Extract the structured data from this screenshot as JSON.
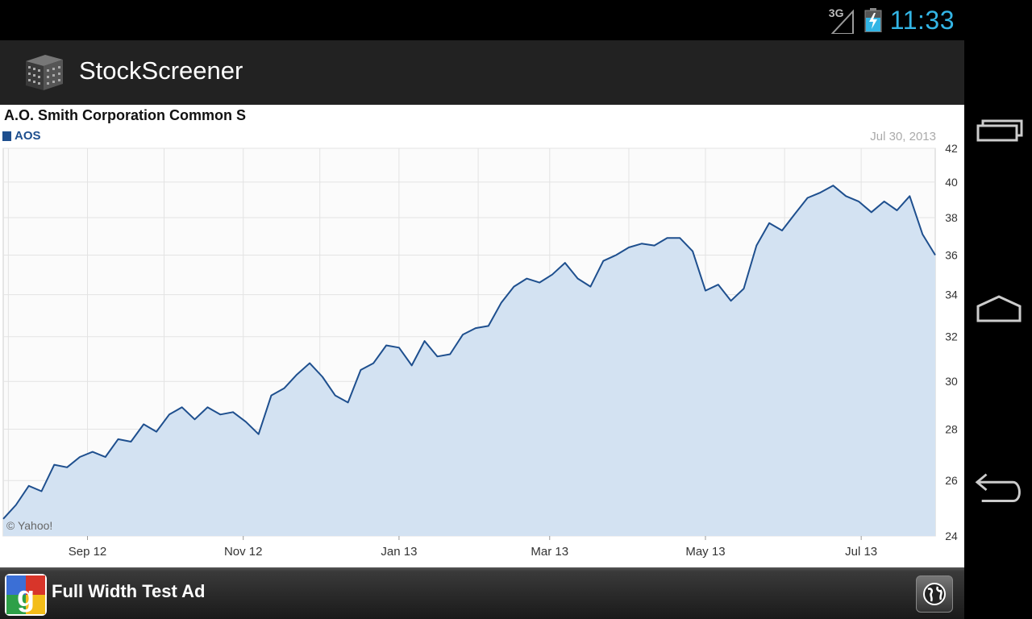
{
  "status_bar": {
    "network_label": "3G",
    "time": "11:33",
    "icons": [
      "signal-icon",
      "battery-charging-icon"
    ],
    "clock_color": "#33b5e5"
  },
  "action_bar": {
    "title": "StockScreener",
    "icon": "app-building-icon"
  },
  "chart": {
    "title": "A.O. Smith Corporation Common S",
    "legend_label": "AOS",
    "date_label": "Jul 30, 2013",
    "watermark": "© Yahoo!",
    "line_color": "#1e4f8e",
    "fill_color": "#d3e2f2"
  },
  "chart_data": {
    "type": "area",
    "title": "A.O. Smith Corporation Common S",
    "series": [
      {
        "name": "AOS",
        "points": [
          [
            "2012-07-30",
            24.6
          ],
          [
            "2012-08-04",
            25.1
          ],
          [
            "2012-08-09",
            25.8
          ],
          [
            "2012-08-14",
            25.6
          ],
          [
            "2012-08-19",
            26.6
          ],
          [
            "2012-08-24",
            26.5
          ],
          [
            "2012-08-29",
            26.9
          ],
          [
            "2012-09-03",
            27.1
          ],
          [
            "2012-09-08",
            26.9
          ],
          [
            "2012-09-13",
            27.6
          ],
          [
            "2012-09-18",
            27.5
          ],
          [
            "2012-09-23",
            28.2
          ],
          [
            "2012-09-28",
            27.9
          ],
          [
            "2012-10-03",
            28.6
          ],
          [
            "2012-10-08",
            28.9
          ],
          [
            "2012-10-13",
            28.4
          ],
          [
            "2012-10-18",
            28.9
          ],
          [
            "2012-10-23",
            28.6
          ],
          [
            "2012-10-28",
            28.7
          ],
          [
            "2012-11-02",
            28.3
          ],
          [
            "2012-11-07",
            27.8
          ],
          [
            "2012-11-12",
            29.4
          ],
          [
            "2012-11-17",
            29.7
          ],
          [
            "2012-11-22",
            30.3
          ],
          [
            "2012-11-27",
            30.8
          ],
          [
            "2012-12-02",
            30.2
          ],
          [
            "2012-12-07",
            29.4
          ],
          [
            "2012-12-12",
            29.1
          ],
          [
            "2012-12-17",
            30.5
          ],
          [
            "2012-12-22",
            30.8
          ],
          [
            "2012-12-27",
            31.6
          ],
          [
            "2013-01-01",
            31.5
          ],
          [
            "2013-01-06",
            30.7
          ],
          [
            "2013-01-11",
            31.8
          ],
          [
            "2013-01-16",
            31.1
          ],
          [
            "2013-01-21",
            31.2
          ],
          [
            "2013-01-26",
            32.1
          ],
          [
            "2013-01-31",
            32.4
          ],
          [
            "2013-02-05",
            32.5
          ],
          [
            "2013-02-10",
            33.6
          ],
          [
            "2013-02-15",
            34.4
          ],
          [
            "2013-02-20",
            34.8
          ],
          [
            "2013-02-25",
            34.6
          ],
          [
            "2013-03-02",
            35.0
          ],
          [
            "2013-03-07",
            35.6
          ],
          [
            "2013-03-12",
            34.8
          ],
          [
            "2013-03-17",
            34.4
          ],
          [
            "2013-03-22",
            35.7
          ],
          [
            "2013-03-27",
            36.0
          ],
          [
            "2013-04-01",
            36.4
          ],
          [
            "2013-04-06",
            36.6
          ],
          [
            "2013-04-11",
            36.5
          ],
          [
            "2013-04-16",
            36.9
          ],
          [
            "2013-04-21",
            36.9
          ],
          [
            "2013-04-26",
            36.2
          ],
          [
            "2013-05-01",
            34.2
          ],
          [
            "2013-05-06",
            34.5
          ],
          [
            "2013-05-11",
            33.7
          ],
          [
            "2013-05-16",
            34.3
          ],
          [
            "2013-05-21",
            36.5
          ],
          [
            "2013-05-26",
            37.7
          ],
          [
            "2013-05-31",
            37.3
          ],
          [
            "2013-06-05",
            38.2
          ],
          [
            "2013-06-10",
            39.1
          ],
          [
            "2013-06-15",
            39.4
          ],
          [
            "2013-06-20",
            39.8
          ],
          [
            "2013-06-25",
            39.2
          ],
          [
            "2013-06-30",
            38.9
          ],
          [
            "2013-07-05",
            38.3
          ],
          [
            "2013-07-10",
            38.9
          ],
          [
            "2013-07-15",
            38.4
          ],
          [
            "2013-07-20",
            39.2
          ],
          [
            "2013-07-25",
            37.1
          ],
          [
            "2013-07-30",
            36.0
          ]
        ]
      }
    ],
    "x_ticks": [
      "Sep 12",
      "Nov 12",
      "Jan 13",
      "Mar 13",
      "May 13",
      "Jul 13"
    ],
    "y_ticks": [
      24,
      26,
      28,
      30,
      32,
      34,
      36,
      38,
      40,
      42
    ],
    "ylim": [
      24,
      42
    ],
    "y_scale": "log",
    "grid": true,
    "legend": "top-left",
    "xlabel": "",
    "ylabel": ""
  },
  "ad_bar": {
    "text": "Full Width Test Ad",
    "logo": "google-logo-icon",
    "action_icon": "globe-icon"
  },
  "nav_bar": {
    "buttons": [
      "recent-apps-icon",
      "home-icon",
      "back-icon"
    ]
  }
}
